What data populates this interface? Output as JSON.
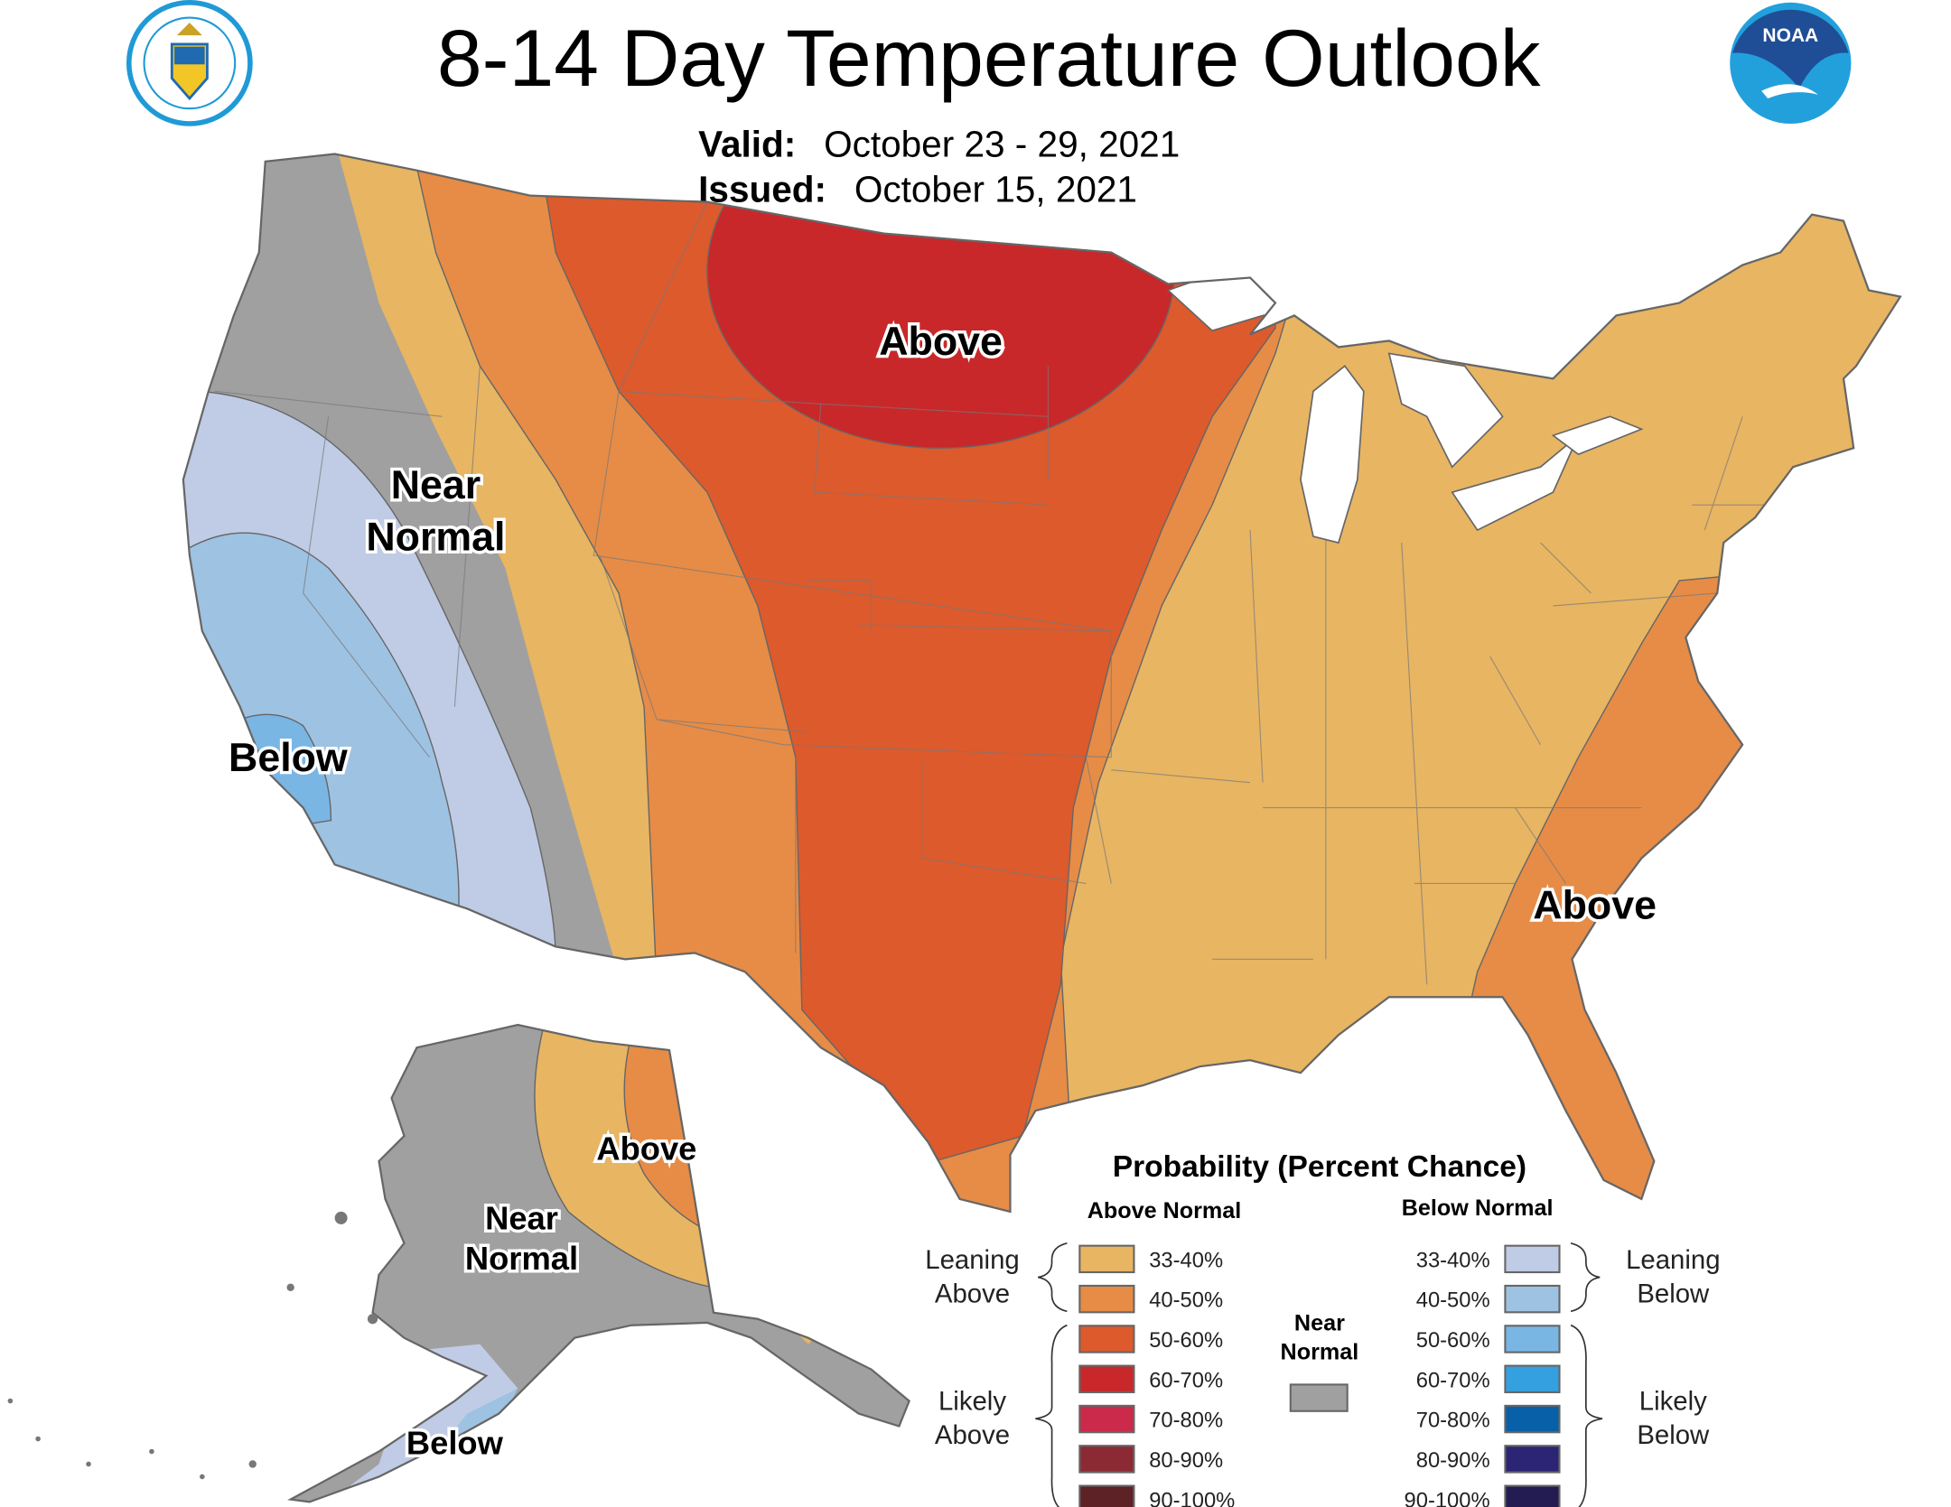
{
  "header": {
    "title": "8-14 Day Temperature Outlook",
    "valid_label": "Valid:",
    "valid_value": "October 23 - 29, 2021",
    "issued_label": "Issued:",
    "issued_value": "October 15, 2021",
    "left_logo": "Department of Commerce · United States of America",
    "right_logo": "NOAA"
  },
  "map": {
    "labels": {
      "conus_above_north": "Above",
      "conus_near_normal_1": "Near",
      "conus_near_normal_2": "Normal",
      "conus_below": "Below",
      "conus_above_southeast": "Above",
      "ak_above": "Above",
      "ak_near_normal_1": "Near",
      "ak_near_normal_2": "Normal",
      "ak_below": "Below"
    },
    "colors": {
      "near_normal": "#a0a0a0",
      "lake": "#ffffff",
      "border": "#666666"
    }
  },
  "legend": {
    "title": "Probability (Percent Chance)",
    "above_header": "Above Normal",
    "below_header": "Below Normal",
    "near_normal_1": "Near",
    "near_normal_2": "Normal",
    "near_normal_color": "#a0a0a0",
    "leaning_above_1": "Leaning",
    "leaning_above_2": "Above",
    "likely_above_1": "Likely",
    "likely_above_2": "Above",
    "leaning_below_1": "Leaning",
    "leaning_below_2": "Below",
    "likely_below_1": "Likely",
    "likely_below_2": "Below",
    "above": [
      {
        "range": "33-40%",
        "color": "#e8b563"
      },
      {
        "range": "40-50%",
        "color": "#e68c47"
      },
      {
        "range": "50-60%",
        "color": "#dc5a2c"
      },
      {
        "range": "60-70%",
        "color": "#c8282a"
      },
      {
        "range": "70-80%",
        "color": "#cc2a4a"
      },
      {
        "range": "80-90%",
        "color": "#8c2a34"
      },
      {
        "range": "90-100%",
        "color": "#5c2226"
      }
    ],
    "below": [
      {
        "range": "33-40%",
        "color": "#c0cce6"
      },
      {
        "range": "40-50%",
        "color": "#9ec2e2"
      },
      {
        "range": "50-60%",
        "color": "#7ab6e4"
      },
      {
        "range": "60-70%",
        "color": "#34a0e0"
      },
      {
        "range": "70-80%",
        "color": "#0860a8"
      },
      {
        "range": "80-90%",
        "color": "#2c2474"
      },
      {
        "range": "90-100%",
        "color": "#221c52"
      }
    ]
  }
}
